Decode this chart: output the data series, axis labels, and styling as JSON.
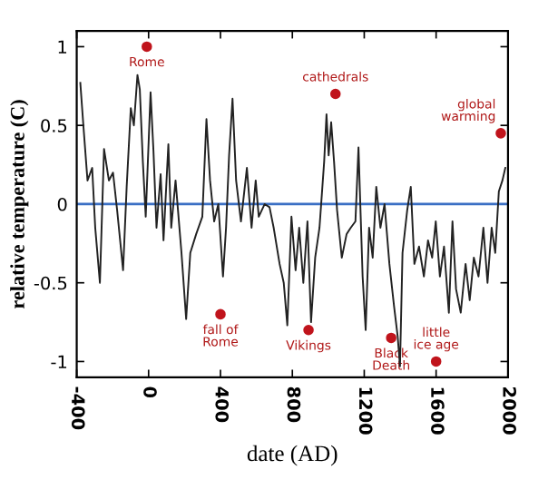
{
  "chart_data": {
    "type": "line",
    "xlabel": "date (AD)",
    "ylabel": "relative temperature (C)",
    "xlim": [
      -400,
      2000
    ],
    "ylim": [
      -1.1,
      1.1
    ],
    "xticks": [
      -400,
      0,
      400,
      800,
      1200,
      1600,
      2000
    ],
    "yticks": [
      {
        "value": -1,
        "label": "-1"
      },
      {
        "value": -0.5,
        "label": "-0.5"
      },
      0,
      0.5,
      1
    ],
    "grid": false,
    "marker": "none",
    "line_style": "solid",
    "series": [
      {
        "color": "#222222",
        "x": [
          -380,
          -363,
          -340,
          -314,
          -297,
          -271,
          -248,
          -221,
          -198,
          -175,
          -142,
          -122,
          -99,
          -82,
          -62,
          -49,
          -32,
          -16,
          11,
          27,
          44,
          67,
          83,
          110,
          126,
          150,
          183,
          209,
          232,
          265,
          299,
          322,
          342,
          365,
          388,
          414,
          431,
          448,
          467,
          487,
          514,
          547,
          573,
          596,
          613,
          646,
          673,
          696,
          729,
          752,
          772,
          795,
          818,
          838,
          861,
          884,
          904,
          927,
          951,
          977,
          990,
          1002,
          1016,
          1032,
          1049,
          1075,
          1102,
          1125,
          1151,
          1168,
          1191,
          1208,
          1227,
          1247,
          1267,
          1290,
          1313,
          1340,
          1366,
          1386,
          1399,
          1413,
          1439,
          1459,
          1479,
          1505,
          1532,
          1555,
          1578,
          1598,
          1621,
          1644,
          1671,
          1691,
          1711,
          1737,
          1764,
          1787,
          1810,
          1836,
          1863,
          1886,
          1909,
          1929,
          1949,
          1969,
          1985
        ],
        "values": [
          0.77,
          0.5,
          0.15,
          0.23,
          -0.15,
          -0.5,
          0.35,
          0.15,
          0.2,
          -0.04,
          -0.42,
          0.11,
          0.61,
          0.5,
          0.82,
          0.73,
          0.27,
          -0.08,
          0.71,
          0.34,
          -0.15,
          0.19,
          -0.23,
          0.38,
          -0.15,
          0.15,
          -0.31,
          -0.73,
          -0.31,
          -0.19,
          -0.08,
          0.54,
          0.15,
          -0.11,
          0.0,
          -0.46,
          -0.15,
          0.31,
          0.67,
          0.15,
          -0.11,
          0.23,
          -0.15,
          0.15,
          -0.08,
          0.0,
          -0.02,
          -0.15,
          -0.38,
          -0.5,
          -0.77,
          -0.08,
          -0.42,
          -0.15,
          -0.5,
          -0.11,
          -0.75,
          -0.34,
          -0.15,
          0.27,
          0.57,
          0.31,
          0.52,
          0.27,
          -0.04,
          -0.34,
          -0.19,
          -0.15,
          -0.11,
          0.36,
          -0.46,
          -0.8,
          -0.15,
          -0.34,
          0.11,
          -0.15,
          0.0,
          -0.38,
          -0.65,
          -0.84,
          -1.03,
          -0.31,
          -0.04,
          0.11,
          -0.38,
          -0.27,
          -0.46,
          -0.23,
          -0.34,
          -0.11,
          -0.46,
          -0.27,
          -0.69,
          -0.11,
          -0.54,
          -0.69,
          -0.38,
          -0.61,
          -0.34,
          -0.46,
          -0.15,
          -0.5,
          -0.15,
          -0.31,
          0.08,
          0.15,
          0.23
        ]
      }
    ],
    "ref_lines": [
      {
        "axis": "y",
        "value": 0,
        "color": "#3a6fc4"
      }
    ],
    "annotations": [
      {
        "text": "Rome",
        "x": -10,
        "y": 1.0
      },
      {
        "text": "cathedrals",
        "x": 1040,
        "y": 0.7
      },
      {
        "text": "global\nwarming",
        "x": 1960,
        "y": 0.45
      },
      {
        "text": "fall of\nRome",
        "x": 400,
        "y": -0.7
      },
      {
        "text": "Vikings",
        "x": 890,
        "y": -0.8
      },
      {
        "text": "Black\nDeath",
        "x": 1350,
        "y": -0.85
      },
      {
        "text": "little\nice age",
        "x": 1600,
        "y": -1.0
      }
    ]
  }
}
